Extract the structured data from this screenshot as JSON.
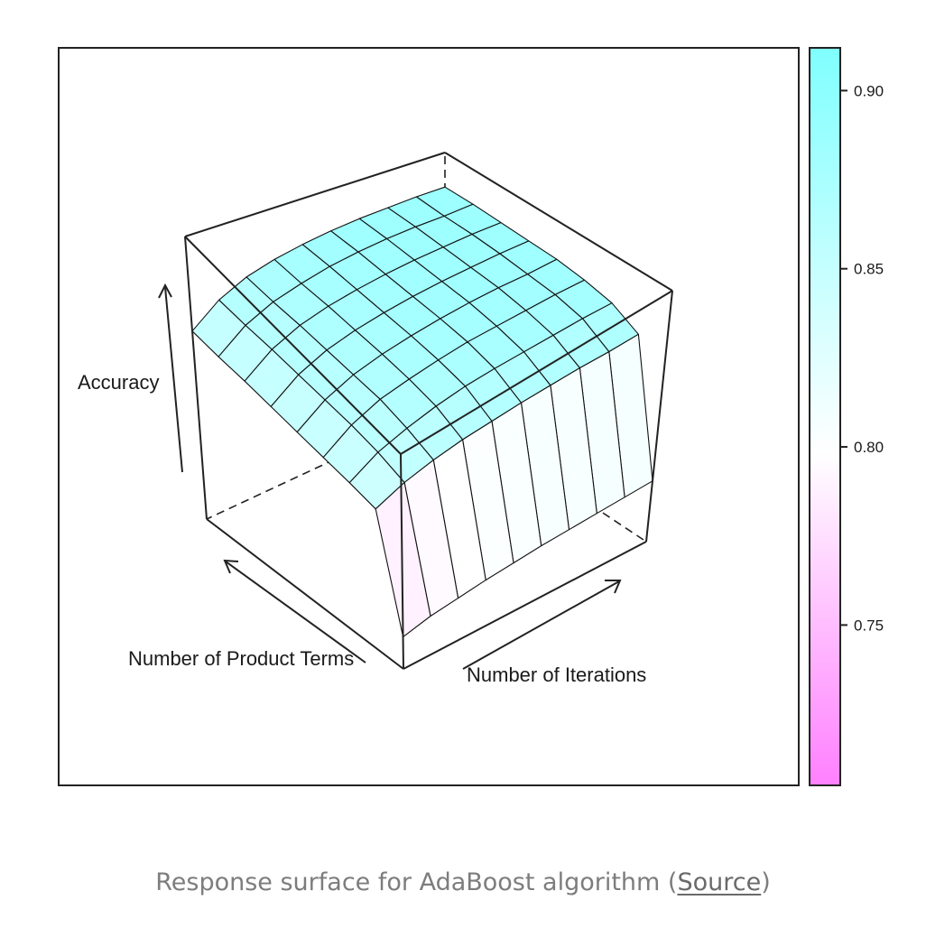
{
  "chart_data": {
    "type": "surface3d",
    "x_axis_label": "Number of Iterations",
    "y_axis_label": "Number of Product Terms",
    "z_axis_label": "Accuracy",
    "colorkey": {
      "ticks": [
        "0.75",
        "0.80",
        "0.85",
        "0.90"
      ],
      "range": [
        0.705,
        0.912
      ],
      "low_color": "#ff80ff",
      "mid_color": "#ffffff",
      "high_color": "#80ffff"
    },
    "x_levels": 10,
    "y_levels": 9,
    "z": [
      [
        0.732,
        0.738,
        0.741,
        0.744,
        0.746,
        0.748,
        0.749,
        0.75,
        0.751,
        0.752
      ],
      [
        0.836,
        0.846,
        0.852,
        0.856,
        0.858,
        0.86,
        0.861,
        0.862,
        0.862,
        0.863
      ],
      [
        0.838,
        0.852,
        0.86,
        0.866,
        0.87,
        0.872,
        0.873,
        0.874,
        0.875,
        0.875
      ],
      [
        0.839,
        0.855,
        0.865,
        0.87,
        0.874,
        0.877,
        0.878,
        0.879,
        0.88,
        0.88
      ],
      [
        0.84,
        0.856,
        0.866,
        0.872,
        0.876,
        0.879,
        0.881,
        0.882,
        0.882,
        0.883
      ],
      [
        0.841,
        0.857,
        0.867,
        0.873,
        0.877,
        0.88,
        0.882,
        0.883,
        0.884,
        0.884
      ],
      [
        0.842,
        0.858,
        0.868,
        0.874,
        0.878,
        0.881,
        0.883,
        0.884,
        0.885,
        0.885
      ],
      [
        0.842,
        0.858,
        0.868,
        0.874,
        0.879,
        0.882,
        0.884,
        0.885,
        0.885,
        0.886
      ],
      [
        0.843,
        0.859,
        0.869,
        0.875,
        0.879,
        0.882,
        0.884,
        0.885,
        0.886,
        0.886
      ]
    ]
  },
  "caption": {
    "text": "Response surface for AdaBoost algorithm (",
    "link_label": "Source",
    "close": ")"
  }
}
